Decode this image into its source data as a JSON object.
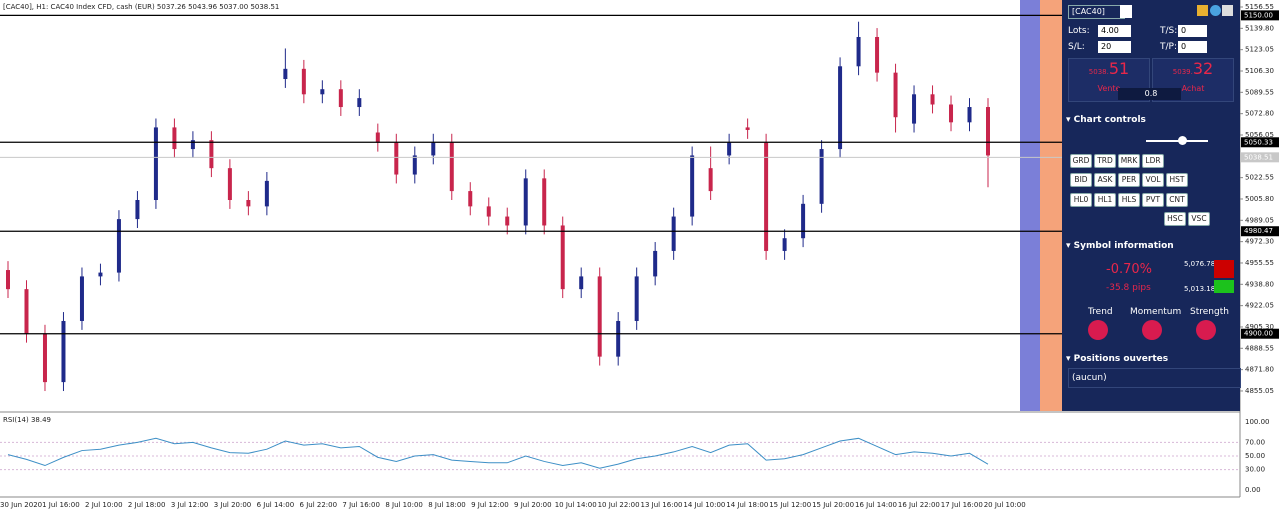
{
  "header": {
    "text": "[CAC40], H1:  CAC40 Index CFD, cash (EUR)  5037.26 5043.96 5037.00 5038.51"
  },
  "chart_data": {
    "type": "candlestick",
    "open": [
      4950,
      4935,
      4900,
      4862,
      4910,
      4945,
      4948,
      4990,
      5005,
      5062,
      5045,
      5052,
      5030,
      5005,
      5000,
      5100,
      5108,
      5088,
      5092,
      5078,
      5058,
      5050,
      5025,
      5040,
      5050,
      5012,
      5000,
      4992,
      4985,
      5022,
      4985,
      4935,
      4945,
      4882,
      4910,
      4945,
      4965,
      4992,
      5030,
      5040,
      5062,
      5050,
      4965,
      4975,
      5002,
      5045,
      5110,
      5133,
      5105,
      5065,
      5088,
      5080,
      5066,
      5078
    ],
    "high": [
      4957,
      4942,
      4907,
      4917,
      4952,
      4955,
      4997,
      5012,
      5069,
      5069,
      5059,
      5059,
      5037,
      5012,
      5027,
      5124,
      5115,
      5099,
      5099,
      5092,
      5065,
      5057,
      5047,
      5057,
      5057,
      5019,
      5007,
      4999,
      5029,
      5029,
      4992,
      4952,
      4952,
      4917,
      4952,
      4972,
      4999,
      5047,
      5047,
      5057,
      5069,
      5057,
      4982,
      5009,
      5052,
      5117,
      5145,
      5140,
      5112,
      5095,
      5095,
      5087,
      5085,
      5085
    ],
    "low": [
      4928,
      4893,
      4855,
      4855,
      4903,
      4938,
      4941,
      4983,
      4998,
      5038,
      5038,
      5023,
      4998,
      4993,
      4993,
      5093,
      5081,
      5081,
      5071,
      5071,
      5043,
      5018,
      5018,
      5033,
      5005,
      4993,
      4985,
      4978,
      4978,
      4978,
      4928,
      4928,
      4875,
      4875,
      4903,
      4938,
      4958,
      4985,
      5005,
      5033,
      5053,
      4958,
      4958,
      4968,
      4995,
      5038,
      5103,
      5098,
      5058,
      5058,
      5073,
      5059,
      5059,
      5015
    ],
    "close": [
      4935,
      4900,
      4862,
      4910,
      4945,
      4948,
      4990,
      5005,
      5062,
      5045,
      5052,
      5030,
      5005,
      5000,
      5020,
      5108,
      5088,
      5092,
      5078,
      5085,
      5050,
      5025,
      5040,
      5050,
      5012,
      5000,
      4992,
      4985,
      5022,
      4985,
      4935,
      4945,
      4882,
      4910,
      4945,
      4965,
      4992,
      5040,
      5012,
      5050,
      5060,
      4965,
      4975,
      5002,
      5045,
      5110,
      5133,
      5105,
      5070,
      5088,
      5080,
      5066,
      5078,
      5040
    ],
    "up_color": "#1f2a8a",
    "down_color": "#c8254c",
    "ylim": [
      4840.1,
      5162.05
    ],
    "yticks": [
      {
        "value": 5156.55,
        "label": "5156.55"
      },
      {
        "value": 5139.8,
        "label": "5139.80"
      },
      {
        "value": 5123.05,
        "label": "5123.05"
      },
      {
        "value": 5106.3,
        "label": "5106.30"
      },
      {
        "value": 5089.55,
        "label": "5089.55"
      },
      {
        "value": 5072.8,
        "label": "5072.80"
      },
      {
        "value": 5056.05,
        "label": "5056.05"
      },
      {
        "value": 5022.55,
        "label": "5022.55"
      },
      {
        "value": 5005.8,
        "label": "5005.80"
      },
      {
        "value": 4989.05,
        "label": "4989.05"
      },
      {
        "value": 4972.3,
        "label": "4972.30"
      },
      {
        "value": 4955.55,
        "label": "4955.55"
      },
      {
        "value": 4938.8,
        "label": "4938.80"
      },
      {
        "value": 4922.05,
        "label": "4922.05"
      },
      {
        "value": 4905.3,
        "label": "4905.30"
      },
      {
        "value": 4888.55,
        "label": "4888.55"
      },
      {
        "value": 4871.8,
        "label": "4871.80"
      },
      {
        "value": 4855.05,
        "label": "4855.05"
      }
    ],
    "levels": [
      {
        "value": 5150,
        "label": "5150.00"
      },
      {
        "value": 5050.33,
        "label": "5050.33"
      },
      {
        "value": 4980.47,
        "label": "4980.47"
      },
      {
        "value": 4900,
        "label": "4900.00"
      }
    ],
    "current": {
      "value": 5038.51,
      "label": "5038.51"
    },
    "time_labels": [
      "30 Jun 2020",
      "1 Jul 16:00",
      "2 Jul 10:00",
      "2 Jul 18:00",
      "3 Jul 12:00",
      "3 Jul 20:00",
      "6 Jul 14:00",
      "6 Jul 22:00",
      "7 Jul 16:00",
      "8 Jul 10:00",
      "8 Jul 18:00",
      "9 Jul 12:00",
      "9 Jul 20:00",
      "10 Jul 14:00",
      "10 Jul 22:00",
      "13 Jul 16:00",
      "14 Jul 10:00",
      "14 Jul 18:00",
      "15 Jul 12:00",
      "15 Jul 20:00",
      "16 Jul 14:00",
      "16 Jul 22:00",
      "17 Jul 16:00",
      "20 Jul 10:00"
    ]
  },
  "rsi": {
    "type": "line",
    "label": "RSI(14) 38.49",
    "color": "#3d8fc6",
    "values": [
      52,
      45,
      36,
      48,
      58,
      60,
      66,
      70,
      76,
      68,
      70,
      62,
      55,
      54,
      60,
      72,
      66,
      68,
      62,
      64,
      48,
      42,
      50,
      52,
      44,
      42,
      40,
      40,
      50,
      42,
      36,
      40,
      32,
      38,
      46,
      50,
      56,
      64,
      55,
      66,
      68,
      44,
      46,
      52,
      62,
      72,
      76,
      64,
      52,
      56,
      54,
      50,
      54,
      38
    ],
    "ylim": [
      0,
      100
    ],
    "yticks": [
      {
        "value": 100,
        "label": "100.00"
      },
      {
        "value": 70,
        "label": "70.00"
      },
      {
        "value": 50,
        "label": "50.00"
      },
      {
        "value": 30,
        "label": "30.00"
      },
      {
        "value": 0,
        "label": "0.00"
      }
    ]
  },
  "panel": {
    "symbol": "[CAC40]",
    "lots_label": "Lots:",
    "lots": "4.00",
    "ts_label": "T/S:",
    "ts": "0",
    "sl_label": "S/L:",
    "sl": "20",
    "tp_label": "T/P:",
    "tp": "0",
    "sell_small": "5038.",
    "sell_big": "51",
    "sell_label": "Vente",
    "buy_small": "5039.",
    "buy_big": "32",
    "buy_label": "Achat",
    "spread": "0.8",
    "chart_controls": "Chart controls",
    "button_rows": [
      [
        "GRD",
        "TRD",
        "MRK",
        "LDR"
      ],
      [
        "BID",
        "ASK",
        "PER",
        "VOL",
        "HST"
      ],
      [
        "HL0",
        "HL1",
        "HLS",
        "PVT",
        "CNT"
      ],
      [
        "HSC",
        "VSC"
      ]
    ],
    "symbol_info": "Symbol information",
    "change": "-0.70%",
    "pips": "-35.8 pips",
    "high": "5,076.78",
    "low": "5,013.18",
    "indicators": [
      "Trend",
      "Momentum",
      "Strength"
    ],
    "positions": "Positions ouvertes",
    "none": "(aucun)"
  }
}
